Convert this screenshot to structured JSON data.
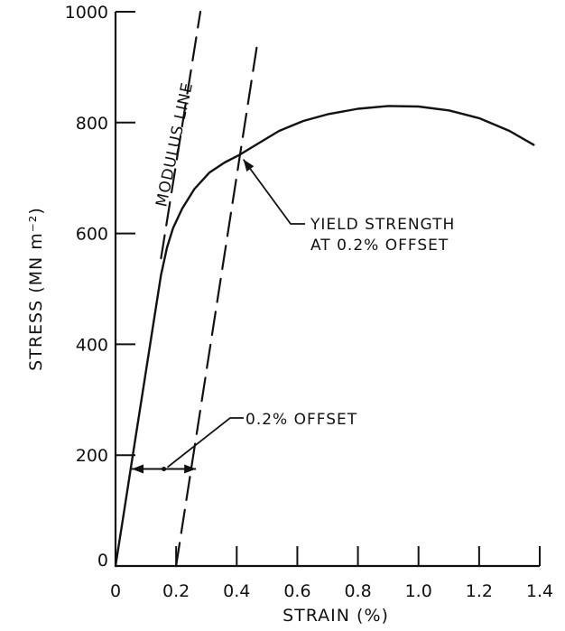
{
  "chart_data": {
    "type": "line",
    "xlabel": "STRAIN (%)",
    "ylabel": "STRESS (MN m⁻²)",
    "xlim": [
      0,
      1.4
    ],
    "ylim": [
      0,
      1000
    ],
    "x_ticks": [
      0,
      0.2,
      0.4,
      0.6,
      0.8,
      1.0,
      1.2,
      1.4
    ],
    "x_tick_labels": [
      "0",
      "0.2",
      "0.4",
      "0.6",
      "0.8",
      "1.0",
      "1.2",
      "1.4"
    ],
    "y_ticks": [
      0,
      200,
      400,
      600,
      800,
      1000
    ],
    "y_tick_labels": [
      "0",
      "200",
      "400",
      "600",
      "800",
      "1000"
    ],
    "grid": false,
    "series": [
      {
        "style": "solid",
        "x": [
          0,
          0.03,
          0.06,
          0.09,
          0.12,
          0.15,
          0.17,
          0.19,
          0.22,
          0.26,
          0.31,
          0.36,
          0.41,
          0.47,
          0.54,
          0.62,
          0.7,
          0.8,
          0.9,
          1.0,
          1.1,
          1.2,
          1.3,
          1.38
        ],
        "y": [
          0,
          105,
          210,
          315,
          420,
          525,
          575,
          610,
          645,
          680,
          710,
          728,
          742,
          762,
          785,
          803,
          815,
          825,
          830,
          829,
          822,
          808,
          785,
          760
        ]
      },
      {
        "style": "dashed",
        "x": [
          0.15,
          0.28
        ],
        "y": [
          555,
          1000
        ]
      },
      {
        "style": "dashed",
        "x": [
          0.2,
          0.47
        ],
        "y": [
          0,
          950
        ]
      }
    ],
    "annotations": [
      {
        "lines": [
          "MODULUS LINE"
        ]
      },
      {
        "lines": [
          "YIELD STRENGTH",
          "AT 0.2% OFFSET"
        ],
        "x": 0.41,
        "y": 740
      },
      {
        "lines": [
          "0.2% OFFSET"
        ],
        "x_from": 0.0,
        "x_to": 0.2,
        "y": 175
      }
    ]
  }
}
